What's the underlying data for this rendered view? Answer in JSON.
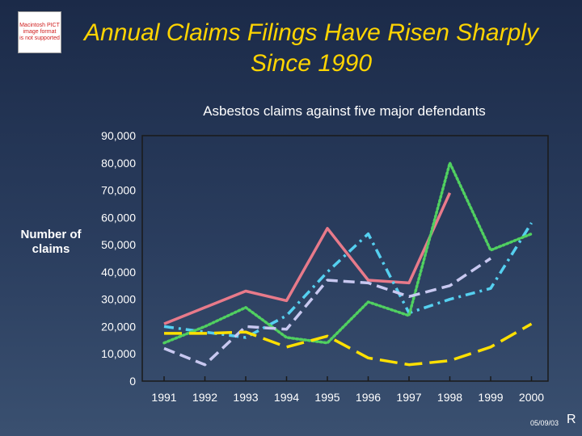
{
  "logo": {
    "text": "Macintosh PICT\nimage format\nis not supported"
  },
  "title": "Annual Claims Filings Have Risen Sharply Since 1990",
  "footer": {
    "date": "05/09/03",
    "mark": "R"
  },
  "chart_data": {
    "type": "line",
    "title": "Asbestos claims against five major defendants",
    "xlabel": "",
    "ylabel": "Number of claims",
    "x": [
      "1991",
      "1992",
      "1993",
      "1994",
      "1995",
      "1996",
      "1997",
      "1998",
      "1999",
      "2000"
    ],
    "y_ticks": [
      "0",
      "10,000",
      "20,000",
      "30,000",
      "40,000",
      "50,000",
      "60,000",
      "70,000",
      "80,000",
      "90,000"
    ],
    "ylim": [
      0,
      90000
    ],
    "grid": false,
    "legend": "none",
    "series": [
      {
        "color": "#e87a8a",
        "dash": "solid",
        "values": [
          21000,
          27000,
          33000,
          29500,
          56000,
          37000,
          36000,
          69000,
          null,
          null
        ]
      },
      {
        "color": "#55d0f0",
        "dash": "dashdot",
        "values": [
          20000,
          18000,
          16000,
          24000,
          40000,
          54000,
          25000,
          30000,
          34000,
          58000
        ]
      },
      {
        "color": "#50d060",
        "dash": "dotted",
        "values": [
          14000,
          20000,
          27000,
          16000,
          14000,
          29000,
          24000,
          80000,
          48000,
          54000
        ]
      },
      {
        "color": "#c8c8f0",
        "dash": "dashed",
        "values": [
          12000,
          6000,
          20000,
          19000,
          37000,
          36000,
          31000,
          35000,
          45000,
          null
        ]
      },
      {
        "color": "#ffe000",
        "dash": "longdash",
        "values": [
          17500,
          17500,
          18000,
          12500,
          16500,
          8500,
          6000,
          7500,
          12500,
          21000
        ]
      }
    ]
  }
}
